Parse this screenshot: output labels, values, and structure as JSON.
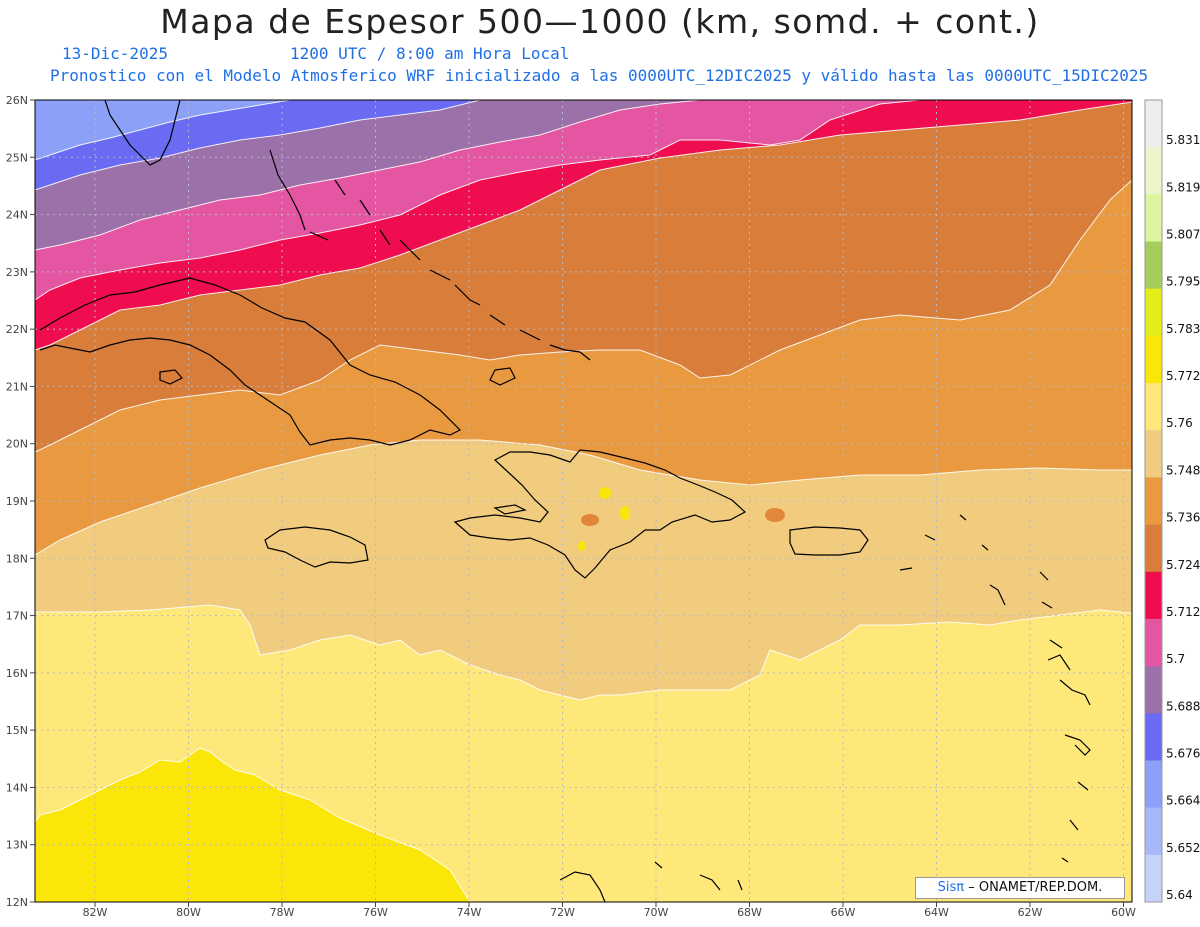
{
  "title": "Mapa de Espesor 500—1000 (km, somd. + cont.)",
  "subtitle": {
    "date": "13-Dic-2025",
    "time": "1200 UTC / 8:00 am Hora Local",
    "model": "Pronostico con el Modelo Atmosferico WRF inicializado a las 0000UTC_12DIC2025 y válido hasta las  0000UTC_15DIC2025"
  },
  "credit": {
    "logo": "Sisπ",
    "text": "– ONAMET/REP.DOM."
  },
  "axes": {
    "lat_labels": [
      "26N",
      "25N",
      "24N",
      "23N",
      "22N",
      "21N",
      "20N",
      "19N",
      "18N",
      "17N",
      "16N",
      "15N",
      "14N",
      "13N",
      "12N"
    ],
    "lon_labels": [
      "82W",
      "80W",
      "78W",
      "76W",
      "74W",
      "72W",
      "70W",
      "68W",
      "66W",
      "64W",
      "62W",
      "60W"
    ],
    "lat_range": [
      12,
      26
    ],
    "lon_range": [
      -83.2,
      -60
    ]
  },
  "colorbar": {
    "labels": [
      "5.831",
      "5.819",
      "5.807",
      "5.795",
      "5.783",
      "5.772",
      "5.76",
      "5.748",
      "5.736",
      "5.724",
      "5.712",
      "5.7",
      "5.688",
      "5.676",
      "5.664",
      "5.652",
      "5.64"
    ],
    "colors": [
      "#eeeeee",
      "#eef5cc",
      "#dcf59e",
      "#a6cc5c",
      "#e4ed1a",
      "#fbe60a",
      "#fee87a",
      "#f1cb7e",
      "#e99a40",
      "#d97d3a",
      "#ef0d50",
      "#e455a2",
      "#9c70a8",
      "#6a6af2",
      "#8ca0f8",
      "#a6b8f8",
      "#c6d2f8"
    ]
  },
  "fields": {
    "band_colors": {
      "c5652": "#8ca0f8",
      "c5664": "#6a6af2",
      "c5676": "#9c70a8",
      "c5688": "#e455a2",
      "c5700": "#ef0d50",
      "c5712": "#d97d3a",
      "c5724": "#e2873a",
      "c5736": "#e99a40",
      "c5748": "#f1cb7e",
      "c5760": "#fee87a",
      "c5772": "#fbe60a"
    }
  }
}
